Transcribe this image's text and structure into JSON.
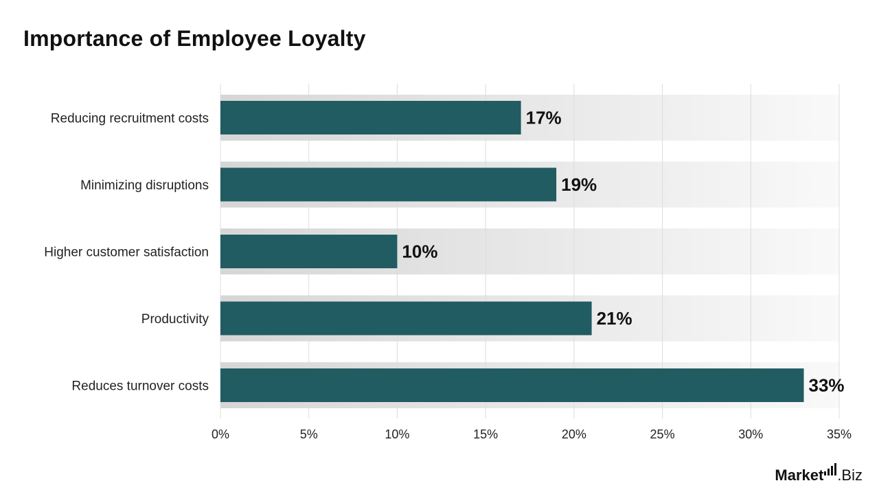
{
  "title": "Importance of Employee Loyalty",
  "chart_data": {
    "type": "bar",
    "orientation": "horizontal",
    "title": "Importance of Employee Loyalty",
    "categories": [
      "Reducing recruitment costs",
      "Minimizing disruptions",
      "Higher customer satisfaction",
      "Productivity",
      "Reduces turnover costs"
    ],
    "values": [
      17,
      19,
      10,
      21,
      33
    ],
    "value_labels": [
      "17%",
      "19%",
      "10%",
      "21%",
      "33%"
    ],
    "xlim": [
      0,
      35
    ],
    "x_ticks": [
      0,
      5,
      10,
      15,
      20,
      25,
      30,
      35
    ],
    "x_tick_labels": [
      "0%",
      "5%",
      "10%",
      "15%",
      "20%",
      "25%",
      "30%",
      "35%"
    ],
    "grid": true,
    "bar_color": "#215c62"
  },
  "logo": {
    "brand_main": "Market",
    "brand_suffix": ".Biz"
  }
}
